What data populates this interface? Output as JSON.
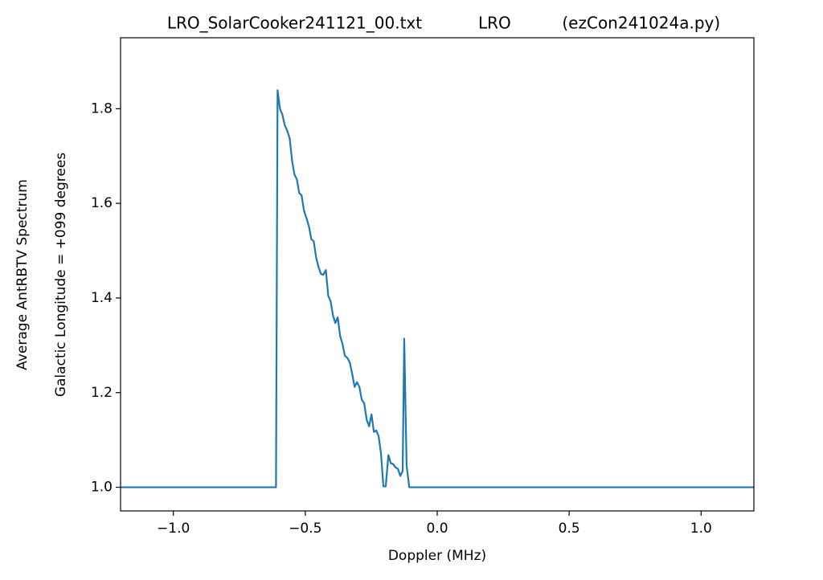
{
  "chart_data": {
    "type": "line",
    "title": "LRO_SolarCooker241121_00.txt           LRO          (ezCon241024a.py)",
    "xlabel": "Doppler (MHz)",
    "ylabel": [
      "Average AntRBTV Spectrum",
      "Galactic Longitude = +099 degrees"
    ],
    "x": [
      -1.2,
      -0.611,
      -0.605,
      -0.596,
      -0.587,
      -0.578,
      -0.568,
      -0.559,
      -0.55,
      -0.541,
      -0.532,
      -0.523,
      -0.514,
      -0.505,
      -0.495,
      -0.486,
      -0.477,
      -0.468,
      -0.459,
      -0.45,
      -0.441,
      -0.432,
      -0.422,
      -0.413,
      -0.404,
      -0.395,
      -0.386,
      -0.377,
      -0.368,
      -0.359,
      -0.35,
      -0.34,
      -0.331,
      -0.322,
      -0.313,
      -0.304,
      -0.295,
      -0.286,
      -0.277,
      -0.267,
      -0.258,
      -0.249,
      -0.24,
      -0.231,
      -0.222,
      -0.213,
      -0.204,
      -0.195,
      -0.185,
      -0.176,
      -0.167,
      -0.158,
      -0.149,
      -0.14,
      -0.131,
      -0.125,
      -0.116,
      -0.106,
      1.2
    ],
    "series": [
      {
        "color": "#1f77b4",
        "values": [
          1.0,
          1.0,
          1.839,
          1.8,
          1.788,
          1.766,
          1.753,
          1.737,
          1.69,
          1.661,
          1.651,
          1.622,
          1.617,
          1.585,
          1.568,
          1.551,
          1.524,
          1.52,
          1.486,
          1.466,
          1.451,
          1.449,
          1.459,
          1.405,
          1.393,
          1.363,
          1.347,
          1.359,
          1.32,
          1.303,
          1.278,
          1.273,
          1.263,
          1.239,
          1.212,
          1.222,
          1.212,
          1.185,
          1.178,
          1.142,
          1.129,
          1.154,
          1.117,
          1.12,
          1.108,
          1.071,
          1.002,
          1.002,
          1.068,
          1.051,
          1.049,
          1.042,
          1.039,
          1.024,
          1.034,
          1.314,
          1.046,
          1.0,
          1.0
        ]
      }
    ],
    "xlim": [
      -1.2,
      1.2
    ],
    "ylim": [
      0.95,
      1.95
    ],
    "xticks": [
      {
        "value": -1.0,
        "label": "−1.0"
      },
      {
        "value": -0.5,
        "label": "−0.5"
      },
      {
        "value": 0,
        "label": "0.0"
      },
      0.5,
      {
        "value": 1.0,
        "label": "1.0"
      }
    ],
    "yticks": [
      {
        "value": 1.0,
        "label": "1.0"
      },
      1.2,
      1.4,
      1.6,
      1.8
    ]
  }
}
